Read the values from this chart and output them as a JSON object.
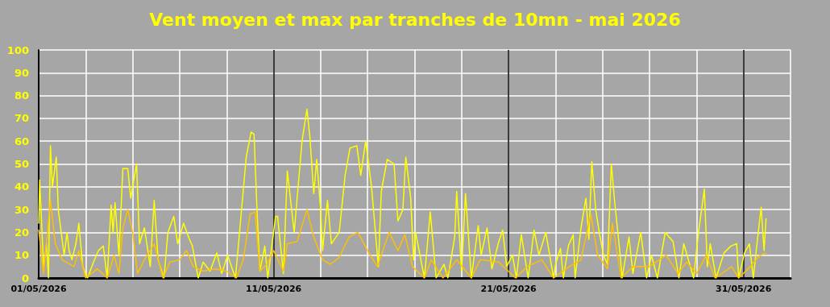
{
  "chart_data": {
    "type": "line",
    "title": "Vent moyen et max par tranches de 10mn - mai 2026",
    "xlim": [
      "2026-05-01",
      "2026-06-02"
    ],
    "xticks": [
      {
        "value": "2026-05-01",
        "label": "01/05/2026"
      },
      {
        "value": "2026-05-03",
        "label": null
      },
      {
        "value": "2026-05-05",
        "label": null
      },
      {
        "value": "2026-05-07",
        "label": null
      },
      {
        "value": "2026-05-09",
        "label": null
      },
      {
        "value": "2026-05-11",
        "label": "11/05/2026"
      },
      {
        "value": "2026-05-13",
        "label": null
      },
      {
        "value": "2026-05-15",
        "label": null
      },
      {
        "value": "2026-05-17",
        "label": null
      },
      {
        "value": "2026-05-19",
        "label": null
      },
      {
        "value": "2026-05-21",
        "label": "21/05/2026"
      },
      {
        "value": "2026-05-23",
        "label": null
      },
      {
        "value": "2026-05-25",
        "label": null
      },
      {
        "value": "2026-05-27",
        "label": null
      },
      {
        "value": "2026-05-29",
        "label": null
      },
      {
        "value": "2026-05-31",
        "label": "31/05/2026"
      },
      {
        "value": "2026-06-02",
        "label": null
      }
    ],
    "ylim": [
      0,
      100
    ],
    "yticks": [
      0,
      10,
      20,
      30,
      40,
      50,
      60,
      70,
      80,
      90,
      100
    ],
    "grid": true,
    "marker": "none",
    "series": [
      {
        "color": "#ffff00",
        "x": [
          "2026-05-01T00:00",
          "2026-05-01T01:00",
          "2026-05-01T05:00",
          "2026-05-01T08:00",
          "2026-05-01T10:00",
          "2026-05-01T12:00",
          "2026-05-01T14:00",
          "2026-05-01T18:00",
          "2026-05-01T20:00",
          "2026-05-02T02:00",
          "2026-05-02T05:00",
          "2026-05-02T07:00",
          "2026-05-02T10:00",
          "2026-05-02T14:00",
          "2026-05-02T17:00",
          "2026-05-02T21:00",
          "2026-05-03T02:00",
          "2026-05-03T08:00",
          "2026-05-03T13:00",
          "2026-05-03T18:00",
          "2026-05-03T22:00",
          "2026-05-04T02:00",
          "2026-05-04T04:00",
          "2026-05-04T06:00",
          "2026-05-04T10:00",
          "2026-05-04T14:00",
          "2026-05-04T19:00",
          "2026-05-04T22:00",
          "2026-05-05T04:00",
          "2026-05-05T07:00",
          "2026-05-05T12:00",
          "2026-05-05T18:00",
          "2026-05-05T22:00",
          "2026-05-06T02:00",
          "2026-05-06T08:00",
          "2026-05-06T12:00",
          "2026-05-06T18:00",
          "2026-05-06T22:00",
          "2026-05-07T04:00",
          "2026-05-07T09:00",
          "2026-05-07T13:00",
          "2026-05-07T19:00",
          "2026-05-08T00:00",
          "2026-05-08T07:00",
          "2026-05-08T14:00",
          "2026-05-08T19:00",
          "2026-05-09T01:00",
          "2026-05-09T09:00",
          "2026-05-09T14:00",
          "2026-05-09T20:00",
          "2026-05-10T01:00",
          "2026-05-10T04:00",
          "2026-05-10T07:00",
          "2026-05-10T10:00",
          "2026-05-10T15:00",
          "2026-05-10T18:00",
          "2026-05-11T02:00",
          "2026-05-11T04:00",
          "2026-05-11T10:00",
          "2026-05-11T14:00",
          "2026-05-11T21:00",
          "2026-05-12T01:00",
          "2026-05-12T05:00",
          "2026-05-12T10:00",
          "2026-05-12T13:00",
          "2026-05-12T17:00",
          "2026-05-12T20:00",
          "2026-05-13T00:00",
          "2026-05-13T02:00",
          "2026-05-13T07:00",
          "2026-05-13T11:00",
          "2026-05-13T19:00",
          "2026-05-14T01:00",
          "2026-05-14T06:00",
          "2026-05-14T13:00",
          "2026-05-14T17:00",
          "2026-05-14T22:00",
          "2026-05-15T04:00",
          "2026-05-15T11:00",
          "2026-05-15T14:00",
          "2026-05-15T20:00",
          "2026-05-16T03:00",
          "2026-05-16T07:00",
          "2026-05-16T12:00",
          "2026-05-16T15:00",
          "2026-05-16T20:00",
          "2026-05-16T23:00",
          "2026-05-17T01:00",
          "2026-05-17T10:00",
          "2026-05-17T16:00",
          "2026-05-17T22:00",
          "2026-05-18T06:00",
          "2026-05-18T10:00",
          "2026-05-18T17:00",
          "2026-05-18T19:00",
          "2026-05-19T00:00",
          "2026-05-19T04:00",
          "2026-05-19T10:00",
          "2026-05-19T17:00",
          "2026-05-19T20:00",
          "2026-05-20T02:00",
          "2026-05-20T07:00",
          "2026-05-20T14:00",
          "2026-05-20T18:00",
          "2026-05-20T22:00",
          "2026-05-21T04:00",
          "2026-05-21T08:00",
          "2026-05-21T13:00",
          "2026-05-21T20:00",
          "2026-05-22T02:00",
          "2026-05-22T07:00",
          "2026-05-22T14:00",
          "2026-05-22T22:00",
          "2026-05-23T00:00",
          "2026-05-23T05:00",
          "2026-05-23T08:00",
          "2026-05-23T13:00",
          "2026-05-23T18:00",
          "2026-05-23T20:00",
          "2026-05-24T02:00",
          "2026-05-24T07:00",
          "2026-05-24T10:00",
          "2026-05-24T13:00",
          "2026-05-24T17:00",
          "2026-05-24T21:00",
          "2026-05-25T01:00",
          "2026-05-25T05:00",
          "2026-05-25T09:00",
          "2026-05-25T12:00",
          "2026-05-25T18:00",
          "2026-05-25T20:00",
          "2026-05-26T03:00",
          "2026-05-26T07:00",
          "2026-05-26T15:00",
          "2026-05-26T21:00",
          "2026-05-27T02:00",
          "2026-05-27T08:00",
          "2026-05-27T16:00",
          "2026-05-28T00:00",
          "2026-05-28T06:00",
          "2026-05-28T11:00",
          "2026-05-28T21:00",
          "2026-05-29T02:00",
          "2026-05-29T08:00",
          "2026-05-29T11:00",
          "2026-05-29T14:00",
          "2026-05-29T20:00",
          "2026-05-30T04:00",
          "2026-05-30T11:00",
          "2026-05-30T17:00",
          "2026-05-30T19:00",
          "2026-05-31T01:00",
          "2026-05-31T06:00",
          "2026-05-31T10:00",
          "2026-05-31T14:00",
          "2026-05-31T18:00",
          "2026-05-31T21:00",
          "2026-05-31T23:00"
        ],
        "values": [
          24,
          43,
          5,
          15,
          0,
          58,
          40,
          53,
          30,
          10,
          20,
          12,
          8,
          15,
          24,
          5,
          0,
          7,
          12,
          14,
          0,
          32,
          20,
          33,
          10,
          48,
          48,
          35,
          50,
          15,
          22,
          5,
          34,
          8,
          0,
          20,
          27,
          15,
          24,
          18,
          14,
          0,
          7,
          3,
          11,
          2,
          10,
          0,
          24,
          53,
          64,
          63,
          30,
          3,
          14,
          0,
          27,
          27,
          2,
          47,
          20,
          40,
          60,
          74,
          62,
          37,
          52,
          30,
          12,
          34,
          15,
          20,
          45,
          57,
          58,
          45,
          60,
          40,
          5,
          38,
          52,
          50,
          25,
          30,
          53,
          35,
          8,
          20,
          0,
          29,
          0,
          6,
          0,
          18,
          38,
          3,
          37,
          0,
          23,
          10,
          22,
          4,
          16,
          21,
          5,
          10,
          0,
          19,
          0,
          21,
          10,
          20,
          0,
          6,
          13,
          0,
          14,
          19,
          0,
          22,
          35,
          17,
          51,
          30,
          19,
          10,
          6,
          50,
          35,
          10,
          0,
          18,
          2,
          20,
          0,
          10,
          0,
          20,
          16,
          0,
          15,
          0,
          20,
          39,
          5,
          15,
          0,
          11,
          14,
          15,
          0,
          11,
          15,
          0,
          16,
          31,
          12,
          26
        ]
      },
      {
        "color": "#ffc000",
        "x": [
          "2026-05-01T00:00",
          "2026-05-01T05:00",
          "2026-05-01T12:00",
          "2026-05-01T17:00",
          "2026-05-02T00:00",
          "2026-05-02T12:00",
          "2026-05-02T17:00",
          "2026-05-03T00:00",
          "2026-05-03T12:00",
          "2026-05-03T22:00",
          "2026-05-04T05:00",
          "2026-05-04T10:00",
          "2026-05-04T14:00",
          "2026-05-04T19:00",
          "2026-05-05T00:00",
          "2026-05-05T05:00",
          "2026-05-05T12:00",
          "2026-05-05T22:00",
          "2026-05-06T07:00",
          "2026-05-06T14:00",
          "2026-05-07T00:00",
          "2026-05-07T07:00",
          "2026-05-07T14:00",
          "2026-05-08T00:00",
          "2026-05-08T12:00",
          "2026-05-09T00:00",
          "2026-05-09T10:00",
          "2026-05-09T17:00",
          "2026-05-10T00:00",
          "2026-05-10T05:00",
          "2026-05-10T10:00",
          "2026-05-10T17:00",
          "2026-05-11T00:00",
          "2026-05-11T10:00",
          "2026-05-11T14:00",
          "2026-05-12T00:00",
          "2026-05-12T10:00",
          "2026-05-12T17:00",
          "2026-05-13T02:00",
          "2026-05-13T10:00",
          "2026-05-13T19:00",
          "2026-05-14T05:00",
          "2026-05-14T14:00",
          "2026-05-15T00:00",
          "2026-05-15T10:00",
          "2026-05-15T22:00",
          "2026-05-16T07:00",
          "2026-05-16T14:00",
          "2026-05-16T22:00",
          "2026-05-17T10:00",
          "2026-05-17T17:00",
          "2026-05-18T05:00",
          "2026-05-18T19:00",
          "2026-05-19T10:00",
          "2026-05-19T19:00",
          "2026-05-20T14:00",
          "2026-05-21T07:00",
          "2026-05-21T19:00",
          "2026-05-22T10:00",
          "2026-05-22T22:00",
          "2026-05-23T14:00",
          "2026-05-24T02:00",
          "2026-05-24T12:00",
          "2026-05-24T19:00",
          "2026-05-25T05:00",
          "2026-05-25T10:00",
          "2026-05-25T19:00",
          "2026-05-26T07:00",
          "2026-05-27T00:00",
          "2026-05-27T17:00",
          "2026-05-28T05:00",
          "2026-05-28T14:00",
          "2026-05-29T00:00",
          "2026-05-29T10:00",
          "2026-05-29T19:00",
          "2026-05-30T12:00",
          "2026-05-30T19:00",
          "2026-05-31T07:00",
          "2026-05-31T17:00",
          "2026-05-31T23:00"
        ],
        "values": [
          21,
          2,
          34,
          15,
          8,
          5,
          12,
          0,
          4,
          0,
          10,
          2,
          22,
          30,
          20,
          2,
          8,
          15,
          0,
          7,
          8,
          12,
          5,
          3,
          4,
          3,
          0,
          8,
          28,
          29,
          3,
          6,
          12,
          3,
          15,
          16,
          30,
          18,
          8,
          6,
          9,
          18,
          20,
          12,
          5,
          20,
          12,
          19,
          5,
          0,
          8,
          0,
          8,
          0,
          8,
          7,
          0,
          5,
          8,
          0,
          5,
          8,
          28,
          10,
          4,
          24,
          0,
          5,
          5,
          10,
          2,
          7,
          2,
          10,
          0,
          5,
          0,
          5,
          10,
          11
        ]
      }
    ]
  }
}
